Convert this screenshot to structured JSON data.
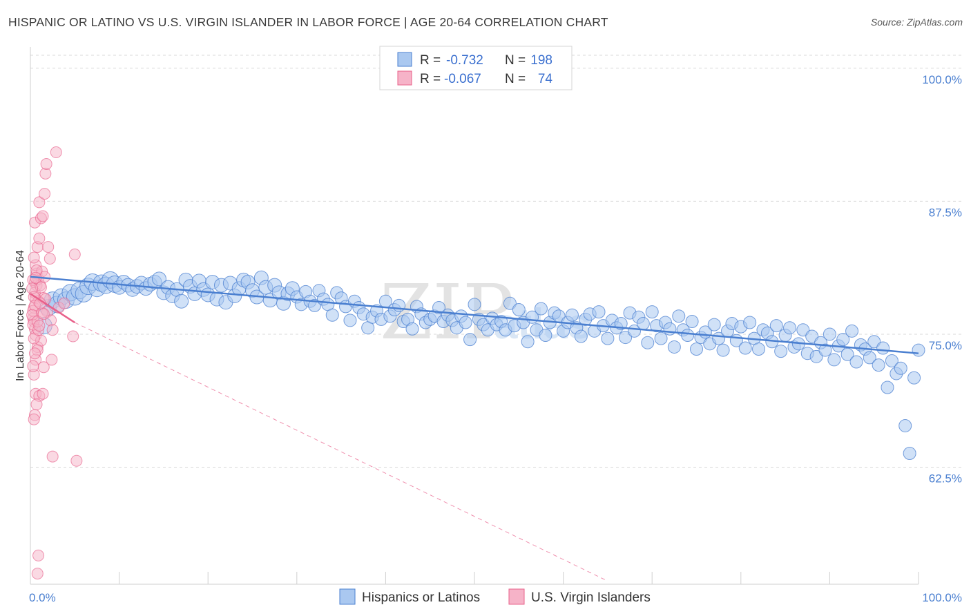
{
  "header": {
    "title": "HISPANIC OR LATINO VS U.S. VIRGIN ISLANDER IN LABOR FORCE | AGE 20-64 CORRELATION CHART",
    "source": "Source: ZipAtlas.com"
  },
  "legend": {
    "r_label": "R =",
    "n_label": "N =",
    "hispanic": {
      "r": "-0.732",
      "n": "198"
    },
    "virgin": {
      "r": "-0.067",
      "n": "74"
    }
  },
  "watermark": {
    "zip": "ZIP",
    "atlas": "atlas"
  },
  "colors": {
    "blue": "#4a7fd0",
    "blue_fill": "#aac8f0",
    "pink": "#e8608a",
    "pink_fill": "#f6b3c8",
    "grid": "#d8d8d8"
  },
  "chart_data": {
    "type": "scatter",
    "title": "HISPANIC OR LATINO VS U.S. VIRGIN ISLANDER IN LABOR FORCE | AGE 20-64 CORRELATION CHART",
    "xlabel": "",
    "ylabel": "In Labor Force | Age 20-64",
    "xlim": [
      0,
      100
    ],
    "ylim": [
      51.5,
      102
    ],
    "x_tick_labels": [
      "0.0%",
      "100.0%"
    ],
    "y_ticks": [
      62.5,
      75.0,
      87.5,
      100.0
    ],
    "y_tick_labels": [
      "62.5%",
      "75.0%",
      "87.5%",
      "100.0%"
    ],
    "legend_position": "top-center",
    "series": [
      {
        "name": "Hispanics or Latinos",
        "color": "#4a7fd0",
        "trend": [
          [
            0,
            80.4
          ],
          [
            100,
            73.2
          ]
        ],
        "points": [
          [
            1.5,
            75.8
          ],
          [
            2,
            77.5
          ],
          [
            2.5,
            78.2
          ],
          [
            3,
            77.8
          ],
          [
            3.5,
            78.5
          ],
          [
            4,
            78.2
          ],
          [
            4.5,
            78.9
          ],
          [
            5,
            78.5
          ],
          [
            5.5,
            79.1
          ],
          [
            6,
            78.8
          ],
          [
            6.5,
            79.5
          ],
          [
            7,
            79.9
          ],
          [
            7.5,
            79.3
          ],
          [
            8,
            79.8
          ],
          [
            8.5,
            79.6
          ],
          [
            9,
            80.1
          ],
          [
            9.5,
            79.7
          ],
          [
            10,
            79.4
          ],
          [
            10.5,
            79.9
          ],
          [
            11,
            79.6
          ],
          [
            11.5,
            79.2
          ],
          [
            12,
            79.5
          ],
          [
            12.5,
            79.8
          ],
          [
            13,
            79.3
          ],
          [
            13.5,
            79.7
          ],
          [
            14,
            79.9
          ],
          [
            14.5,
            80.2
          ],
          [
            15,
            78.9
          ],
          [
            15.5,
            79.4
          ],
          [
            16,
            78.6
          ],
          [
            16.5,
            79.2
          ],
          [
            17,
            78.1
          ],
          [
            17.5,
            80.1
          ],
          [
            18,
            79.5
          ],
          [
            18.5,
            78.8
          ],
          [
            19,
            80.0
          ],
          [
            19.5,
            79.2
          ],
          [
            20,
            78.7
          ],
          [
            20.5,
            79.9
          ],
          [
            21,
            78.3
          ],
          [
            21.5,
            79.6
          ],
          [
            22,
            78.0
          ],
          [
            22.5,
            79.8
          ],
          [
            23,
            78.6
          ],
          [
            23.5,
            79.3
          ],
          [
            24,
            80.1
          ],
          [
            24.5,
            79.9
          ],
          [
            25,
            79.1
          ],
          [
            25.5,
            78.5
          ],
          [
            26,
            80.3
          ],
          [
            26.5,
            79.4
          ],
          [
            27,
            78.2
          ],
          [
            27.5,
            79.6
          ],
          [
            28,
            78.9
          ],
          [
            28.5,
            77.9
          ],
          [
            29,
            78.8
          ],
          [
            29.5,
            79.3
          ],
          [
            30,
            78.5
          ],
          [
            30.5,
            77.8
          ],
          [
            31,
            79.0
          ],
          [
            31.5,
            78.1
          ],
          [
            32,
            77.7
          ],
          [
            32.5,
            79.1
          ],
          [
            33,
            78.3
          ],
          [
            33.5,
            77.8
          ],
          [
            34,
            76.8
          ],
          [
            34.5,
            78.9
          ],
          [
            35,
            78.4
          ],
          [
            35.5,
            77.6
          ],
          [
            36,
            76.3
          ],
          [
            36.5,
            78.1
          ],
          [
            37,
            77.5
          ],
          [
            37.5,
            76.9
          ],
          [
            38,
            75.6
          ],
          [
            38.5,
            76.6
          ],
          [
            39,
            77.2
          ],
          [
            39.5,
            76.4
          ],
          [
            40,
            78.1
          ],
          [
            40.5,
            76.7
          ],
          [
            41,
            77.3
          ],
          [
            41.5,
            77.7
          ],
          [
            42,
            76.2
          ],
          [
            42.5,
            76.4
          ],
          [
            43,
            75.5
          ],
          [
            43.5,
            77.6
          ],
          [
            44,
            76.9
          ],
          [
            44.5,
            76.1
          ],
          [
            45,
            76.4
          ],
          [
            45.5,
            76.7
          ],
          [
            46,
            77.5
          ],
          [
            46.5,
            76.2
          ],
          [
            47,
            76.8
          ],
          [
            47.5,
            76.3
          ],
          [
            48,
            75.6
          ],
          [
            48.5,
            76.7
          ],
          [
            49,
            76.1
          ],
          [
            49.5,
            74.5
          ],
          [
            50,
            77.8
          ],
          [
            50.5,
            76.4
          ],
          [
            51,
            75.9
          ],
          [
            51.5,
            75.4
          ],
          [
            52,
            76.5
          ],
          [
            52.5,
            75.9
          ],
          [
            53,
            76.2
          ],
          [
            53.5,
            75.4
          ],
          [
            54,
            77.9
          ],
          [
            54.5,
            75.8
          ],
          [
            55,
            77.3
          ],
          [
            55.5,
            76.1
          ],
          [
            56,
            74.3
          ],
          [
            56.5,
            76.6
          ],
          [
            57,
            75.4
          ],
          [
            57.5,
            77.4
          ],
          [
            58,
            74.9
          ],
          [
            58.5,
            76.1
          ],
          [
            59,
            77.0
          ],
          [
            59.5,
            76.7
          ],
          [
            60,
            75.3
          ],
          [
            60.5,
            76.1
          ],
          [
            61,
            76.8
          ],
          [
            61.5,
            75.6
          ],
          [
            62,
            74.8
          ],
          [
            62.5,
            76.4
          ],
          [
            63,
            76.9
          ],
          [
            63.5,
            75.3
          ],
          [
            64,
            77.1
          ],
          [
            64.5,
            75.8
          ],
          [
            65,
            74.6
          ],
          [
            65.5,
            76.3
          ],
          [
            66,
            75.6
          ],
          [
            66.5,
            76.0
          ],
          [
            67,
            74.7
          ],
          [
            67.5,
            77.0
          ],
          [
            68,
            75.3
          ],
          [
            68.5,
            76.6
          ],
          [
            69,
            76.0
          ],
          [
            69.5,
            74.2
          ],
          [
            70,
            77.1
          ],
          [
            70.5,
            75.8
          ],
          [
            71,
            74.6
          ],
          [
            71.5,
            76.1
          ],
          [
            72,
            75.5
          ],
          [
            72.5,
            73.8
          ],
          [
            73,
            76.7
          ],
          [
            73.5,
            75.4
          ],
          [
            74,
            74.9
          ],
          [
            74.5,
            76.2
          ],
          [
            75,
            73.6
          ],
          [
            75.5,
            74.7
          ],
          [
            76,
            75.2
          ],
          [
            76.5,
            74.1
          ],
          [
            77,
            75.9
          ],
          [
            77.5,
            74.6
          ],
          [
            78,
            73.5
          ],
          [
            78.5,
            75.3
          ],
          [
            79,
            76.0
          ],
          [
            79.5,
            74.4
          ],
          [
            80,
            75.7
          ],
          [
            80.5,
            73.7
          ],
          [
            81,
            76.1
          ],
          [
            81.5,
            74.6
          ],
          [
            82,
            73.6
          ],
          [
            82.5,
            75.4
          ],
          [
            83,
            75.1
          ],
          [
            83.5,
            74.3
          ],
          [
            84,
            75.8
          ],
          [
            84.5,
            73.4
          ],
          [
            85,
            74.9
          ],
          [
            85.5,
            75.6
          ],
          [
            86,
            73.8
          ],
          [
            86.5,
            74.1
          ],
          [
            87,
            75.4
          ],
          [
            87.5,
            73.2
          ],
          [
            88,
            74.8
          ],
          [
            88.5,
            72.9
          ],
          [
            89,
            74.2
          ],
          [
            89.5,
            73.5
          ],
          [
            90,
            75.0
          ],
          [
            90.5,
            72.6
          ],
          [
            91,
            73.9
          ],
          [
            91.5,
            74.5
          ],
          [
            92,
            73.1
          ],
          [
            92.5,
            75.3
          ],
          [
            93,
            72.4
          ],
          [
            93.5,
            74.0
          ],
          [
            94,
            73.6
          ],
          [
            94.5,
            72.8
          ],
          [
            95,
            74.3
          ],
          [
            95.5,
            72.1
          ],
          [
            96,
            73.7
          ],
          [
            96.5,
            70.0
          ],
          [
            97,
            72.5
          ],
          [
            97.5,
            71.3
          ],
          [
            98,
            71.8
          ],
          [
            98.5,
            66.4
          ],
          [
            99,
            63.8
          ],
          [
            99.5,
            70.9
          ],
          [
            100,
            73.5
          ]
        ]
      },
      {
        "name": "U.S. Virgin Islanders",
        "color": "#e8608a",
        "trend": [
          [
            0,
            78.8
          ],
          [
            5,
            76.1
          ]
        ],
        "trend_ext": [
          [
            5,
            76.1
          ],
          [
            65,
            51.8
          ]
        ],
        "points": [
          [
            0.3,
            76.5
          ],
          [
            0.4,
            77.5
          ],
          [
            0.5,
            79.9
          ],
          [
            0.6,
            78.4
          ],
          [
            0.7,
            80.7
          ],
          [
            0.4,
            76.2
          ],
          [
            0.5,
            75.5
          ],
          [
            0.6,
            74.9
          ],
          [
            0.8,
            73.8
          ],
          [
            0.3,
            77.2
          ],
          [
            0.7,
            79.6
          ],
          [
            0.5,
            78.9
          ],
          [
            0.9,
            80.2
          ],
          [
            0.6,
            81.5
          ],
          [
            0.4,
            82.2
          ],
          [
            0.8,
            83.2
          ],
          [
            1.0,
            84.0
          ],
          [
            0.5,
            85.5
          ],
          [
            1.2,
            85.9
          ],
          [
            1.0,
            87.4
          ],
          [
            1.4,
            86.1
          ],
          [
            1.6,
            88.2
          ],
          [
            1.7,
            90.1
          ],
          [
            1.8,
            91.0
          ],
          [
            2.9,
            92.1
          ],
          [
            2.0,
            83.2
          ],
          [
            2.2,
            82.1
          ],
          [
            1.3,
            80.9
          ],
          [
            1.1,
            79.6
          ],
          [
            1.5,
            78.4
          ],
          [
            1.9,
            77.1
          ],
          [
            2.3,
            76.3
          ],
          [
            2.5,
            75.4
          ],
          [
            1.2,
            74.4
          ],
          [
            0.8,
            73.5
          ],
          [
            0.6,
            72.6
          ],
          [
            0.4,
            71.2
          ],
          [
            1.5,
            71.9
          ],
          [
            2.4,
            72.6
          ],
          [
            0.6,
            69.4
          ],
          [
            1.0,
            69.2
          ],
          [
            1.4,
            69.4
          ],
          [
            0.5,
            67.4
          ],
          [
            2.5,
            63.5
          ],
          [
            5.2,
            63.1
          ],
          [
            5.0,
            82.5
          ],
          [
            4.8,
            74.8
          ],
          [
            3.2,
            77.5
          ],
          [
            3.8,
            77.9
          ],
          [
            0.9,
            78.1
          ],
          [
            1.2,
            79.4
          ],
          [
            1.6,
            80.4
          ],
          [
            0.7,
            81.0
          ],
          [
            0.3,
            80.1
          ],
          [
            0.2,
            79.3
          ],
          [
            0.4,
            78.5
          ],
          [
            0.5,
            77.7
          ],
          [
            0.2,
            76.8
          ],
          [
            0.3,
            75.9
          ],
          [
            0.4,
            74.6
          ],
          [
            0.9,
            75.4
          ],
          [
            1.3,
            77.0
          ],
          [
            1.7,
            78.3
          ],
          [
            0.6,
            80.3
          ],
          [
            0.8,
            76.2
          ],
          [
            1.0,
            75.8
          ],
          [
            1.1,
            77.9
          ],
          [
            0.7,
            68.4
          ],
          [
            0.4,
            67.0
          ],
          [
            0.5,
            73.2
          ],
          [
            0.3,
            72.0
          ],
          [
            0.9,
            54.2
          ],
          [
            0.8,
            52.5
          ],
          [
            1.5,
            76.9
          ]
        ]
      }
    ]
  },
  "bottom_legend": {
    "hispanic_label": "Hispanics or Latinos",
    "virgin_label": "U.S. Virgin Islanders"
  }
}
